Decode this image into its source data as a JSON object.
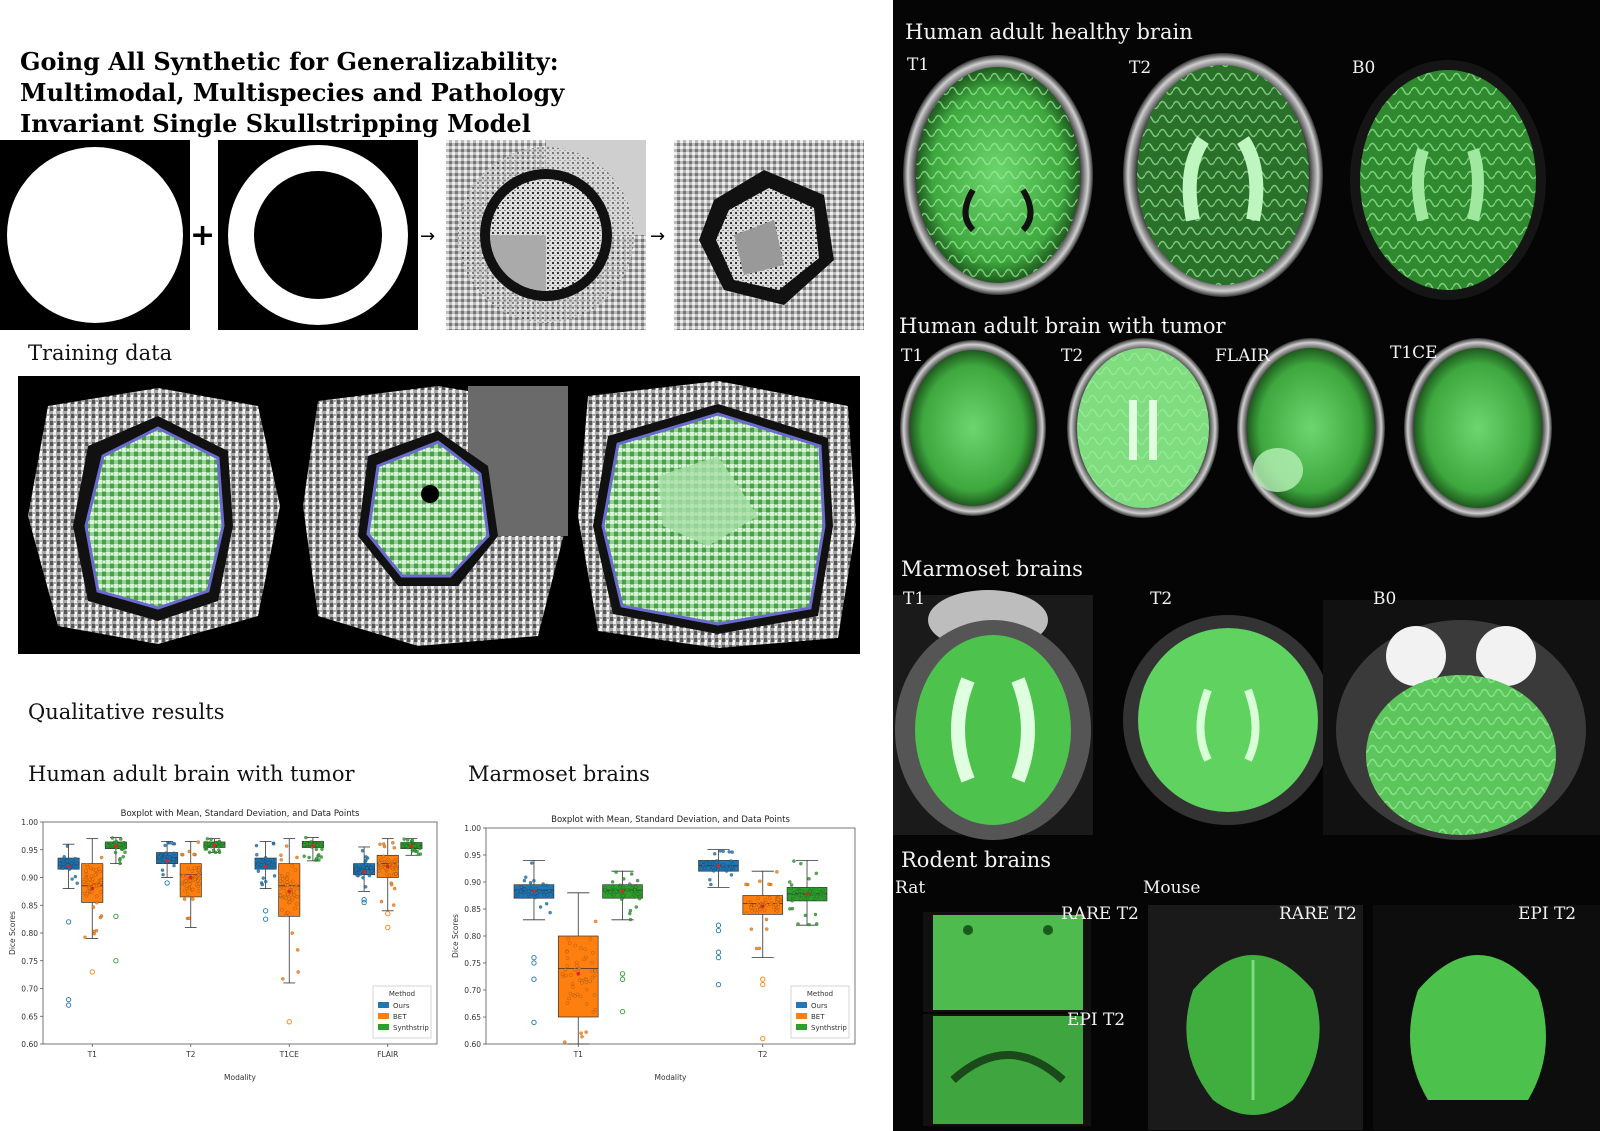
{
  "title": "Going All Synthetic for Generalizability: Multimodal, Multispecies and Pathology Invariant Single Skullstripping Model",
  "pipeline": {
    "plus": "+",
    "arrow1": "→",
    "arrow2": "→"
  },
  "training_label": "Training data",
  "qualitative_label": "Qualitative results",
  "right": {
    "healthy": {
      "title": "Human adult healthy brain",
      "labels": [
        "T1",
        "T2",
        "B0"
      ]
    },
    "tumor": {
      "title": "Human adult brain with tumor",
      "labels": [
        "T1",
        "T2",
        "FLAIR",
        "T1CE"
      ]
    },
    "marmoset": {
      "title": "Marmoset brains",
      "labels": [
        "T1",
        "T2",
        "B0"
      ]
    },
    "rodent": {
      "title": "Rodent brains",
      "rat": "Rat",
      "mouse": "Mouse",
      "rat_rare": "RARE T2",
      "rat_epi": "EPI T2",
      "mouse_rare": "RARE T2",
      "mouse_epi": "EPI T2"
    }
  },
  "colors": {
    "ours": "#1f77b4",
    "bet": "#ff7f0e",
    "synthstrip": "#2ca02c",
    "mask_green": "#5fd35f"
  },
  "chart_data": [
    {
      "type": "box",
      "section_label": "Human adult brain with tumor",
      "title": "Boxplot with Mean, Standard Deviation, and Data Points",
      "xlabel": "Modality",
      "ylabel": "Dice Scores",
      "ylim": [
        0.6,
        1.0
      ],
      "yticks": [
        "0.60",
        "0.65",
        "0.70",
        "0.75",
        "0.80",
        "0.85",
        "0.90",
        "0.95",
        "1.00"
      ],
      "categories": [
        "T1",
        "T2",
        "T1CE",
        "FLAIR"
      ],
      "legend_title": "Method",
      "legend_position": "lower-right",
      "series": [
        {
          "name": "Ours",
          "color": "#1f77b4",
          "boxes": [
            {
              "q1": 0.915,
              "med": 0.925,
              "q3": 0.935,
              "wlo": 0.88,
              "whi": 0.96,
              "mean": 0.92,
              "outliers": [
                0.82,
                0.68,
                0.67
              ]
            },
            {
              "q1": 0.925,
              "med": 0.935,
              "q3": 0.945,
              "wlo": 0.9,
              "whi": 0.965,
              "mean": 0.93,
              "outliers": [
                0.89
              ]
            },
            {
              "q1": 0.915,
              "med": 0.925,
              "q3": 0.935,
              "wlo": 0.88,
              "whi": 0.965,
              "mean": 0.92,
              "outliers": [
                0.84,
                0.825
              ]
            },
            {
              "q1": 0.905,
              "med": 0.915,
              "q3": 0.925,
              "wlo": 0.875,
              "whi": 0.955,
              "mean": 0.91,
              "outliers": [
                0.86,
                0.855
              ]
            }
          ]
        },
        {
          "name": "BET",
          "color": "#ff7f0e",
          "boxes": [
            {
              "q1": 0.855,
              "med": 0.885,
              "q3": 0.925,
              "wlo": 0.79,
              "whi": 0.97,
              "mean": 0.88,
              "outliers": [
                0.73
              ]
            },
            {
              "q1": 0.865,
              "med": 0.905,
              "q3": 0.925,
              "wlo": 0.81,
              "whi": 0.965,
              "mean": 0.9,
              "outliers": []
            },
            {
              "q1": 0.83,
              "med": 0.885,
              "q3": 0.925,
              "wlo": 0.71,
              "whi": 0.97,
              "mean": 0.875,
              "outliers": [
                0.64
              ]
            },
            {
              "q1": 0.9,
              "med": 0.925,
              "q3": 0.94,
              "wlo": 0.84,
              "whi": 0.97,
              "mean": 0.92,
              "outliers": [
                0.835,
                0.81
              ]
            }
          ]
        },
        {
          "name": "Synthstrip",
          "color": "#2ca02c",
          "boxes": [
            {
              "q1": 0.952,
              "med": 0.958,
              "q3": 0.964,
              "wlo": 0.925,
              "whi": 0.972,
              "mean": 0.957,
              "outliers": [
                0.83,
                0.75
              ]
            },
            {
              "q1": 0.954,
              "med": 0.959,
              "q3": 0.964,
              "wlo": 0.945,
              "whi": 0.97,
              "mean": 0.958,
              "outliers": []
            },
            {
              "q1": 0.954,
              "med": 0.96,
              "q3": 0.965,
              "wlo": 0.93,
              "whi": 0.972,
              "mean": 0.958,
              "outliers": []
            },
            {
              "q1": 0.952,
              "med": 0.958,
              "q3": 0.963,
              "wlo": 0.94,
              "whi": 0.97,
              "mean": 0.957,
              "outliers": []
            }
          ]
        }
      ]
    },
    {
      "type": "box",
      "section_label": "Marmoset brains",
      "title": "Boxplot with Mean, Standard Deviation, and Data Points",
      "xlabel": "Modality",
      "ylabel": "Dice Scores",
      "ylim": [
        0.6,
        1.0
      ],
      "yticks": [
        "0.60",
        "0.65",
        "0.70",
        "0.75",
        "0.80",
        "0.85",
        "0.90",
        "0.95",
        "1.00"
      ],
      "categories": [
        "T1",
        "T2"
      ],
      "legend_title": "Method",
      "legend_position": "lower-right",
      "series": [
        {
          "name": "Ours",
          "color": "#1f77b4",
          "boxes": [
            {
              "q1": 0.87,
              "med": 0.885,
              "q3": 0.895,
              "wlo": 0.83,
              "whi": 0.94,
              "mean": 0.883,
              "outliers": [
                0.76,
                0.75,
                0.72,
                0.64
              ]
            },
            {
              "q1": 0.92,
              "med": 0.93,
              "q3": 0.94,
              "wlo": 0.89,
              "whi": 0.96,
              "mean": 0.93,
              "outliers": [
                0.82,
                0.81,
                0.77,
                0.76,
                0.71
              ]
            }
          ]
        },
        {
          "name": "BET",
          "color": "#ff7f0e",
          "boxes": [
            {
              "q1": 0.65,
              "med": 0.74,
              "q3": 0.8,
              "wlo": 0.6,
              "whi": 0.88,
              "mean": 0.73,
              "outliers": []
            },
            {
              "q1": 0.84,
              "med": 0.86,
              "q3": 0.875,
              "wlo": 0.76,
              "whi": 0.92,
              "mean": 0.855,
              "outliers": [
                0.72,
                0.71,
                0.61
              ]
            }
          ]
        },
        {
          "name": "Synthstrip",
          "color": "#2ca02c",
          "boxes": [
            {
              "q1": 0.87,
              "med": 0.885,
              "q3": 0.895,
              "wlo": 0.83,
              "whi": 0.92,
              "mean": 0.884,
              "outliers": [
                0.73,
                0.72,
                0.66
              ]
            },
            {
              "q1": 0.865,
              "med": 0.878,
              "q3": 0.89,
              "wlo": 0.82,
              "whi": 0.94,
              "mean": 0.877,
              "outliers": []
            }
          ]
        }
      ]
    }
  ]
}
